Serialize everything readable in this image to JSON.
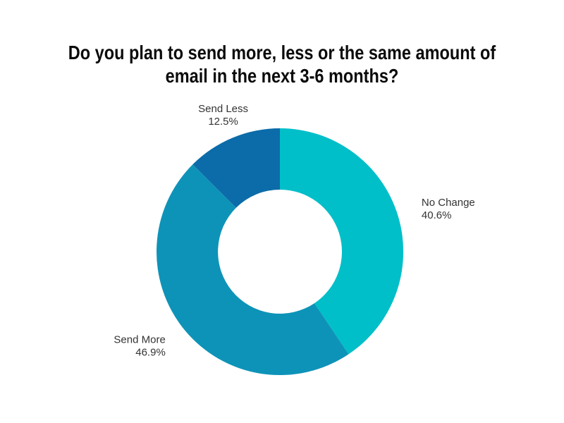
{
  "page": {
    "background": "#ffffff"
  },
  "title": {
    "line1": "Do you plan to send more, less or the same amount of",
    "line2": "email in the next 3-6 months?",
    "color": "#0b0b0b"
  },
  "chart_data": {
    "type": "pie",
    "subtype": "donut",
    "title": "Do you plan to send more, less or the same amount of email in the next 3-6 months?",
    "start_angle_deg": 0,
    "direction": "clockwise",
    "inner_radius_ratio": 0.5,
    "legend": "none",
    "labels_position": "outside",
    "label_color": "#333333",
    "slices": [
      {
        "label": "No Change",
        "value": 40.6,
        "display_value": "40.6%",
        "color": "#00bfc9"
      },
      {
        "label": "Send More",
        "value": 46.9,
        "display_value": "46.9%",
        "color": "#0e93b8"
      },
      {
        "label": "Send Less",
        "value": 12.5,
        "display_value": "12.5%",
        "color": "#0b6ca9"
      }
    ]
  }
}
